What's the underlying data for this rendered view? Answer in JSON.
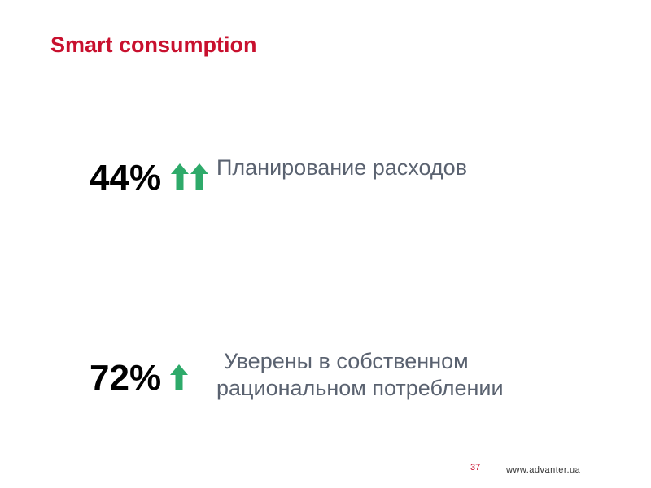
{
  "slide": {
    "title": "Smart consumption",
    "stats": [
      {
        "value": "44%",
        "arrows": "double-up-arrow-icon",
        "label_lines": [
          "Планирование расходов"
        ]
      },
      {
        "value": "72%",
        "arrows": "up-arrow-icon",
        "label_lines": [
          "Уверены в собственном",
          "рациональном потреблении"
        ]
      }
    ],
    "page_number": "37",
    "website": "www.advanter.ua"
  },
  "colors": {
    "title": "#c8102e",
    "arrow": "#2eaa6a",
    "label": "#5a6270",
    "page_number": "#c8102e",
    "website": "#333333",
    "stat": "#000000"
  }
}
